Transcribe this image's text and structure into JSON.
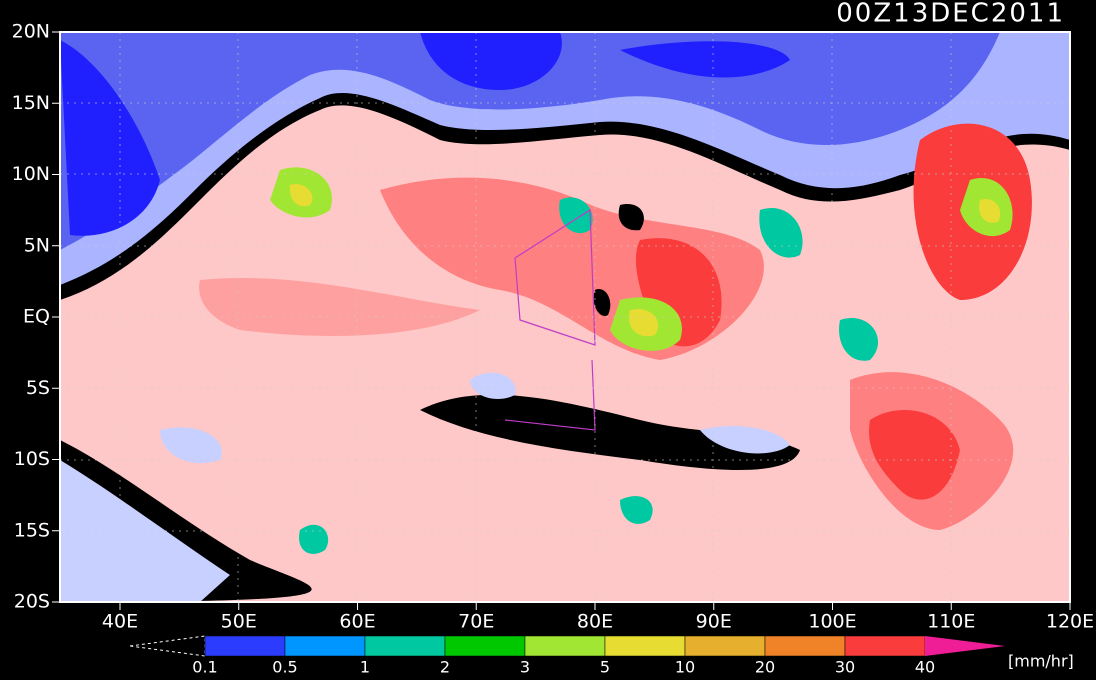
{
  "title": "00Z13DEC2011",
  "lat_labels": [
    "20N",
    "15N",
    "10N",
    "5N",
    "EQ",
    "5S",
    "10S",
    "15S",
    "20S"
  ],
  "lon_labels": [
    "40E",
    "50E",
    "60E",
    "70E",
    "80E",
    "90E",
    "100E",
    "110E",
    "120E"
  ],
  "colorbar": {
    "labels": [
      "0.1",
      "0.5",
      "1",
      "2",
      "3",
      "5",
      "10",
      "20",
      "30",
      "40"
    ],
    "colors": [
      "#2c3cff",
      "#0096ff",
      "#00c8a0",
      "#00c800",
      "#a0e632",
      "#e6dc32",
      "#e6af2d",
      "#f08228",
      "#fa3c3c",
      "#f01e96"
    ],
    "unit": "[mm/hr]"
  }
}
